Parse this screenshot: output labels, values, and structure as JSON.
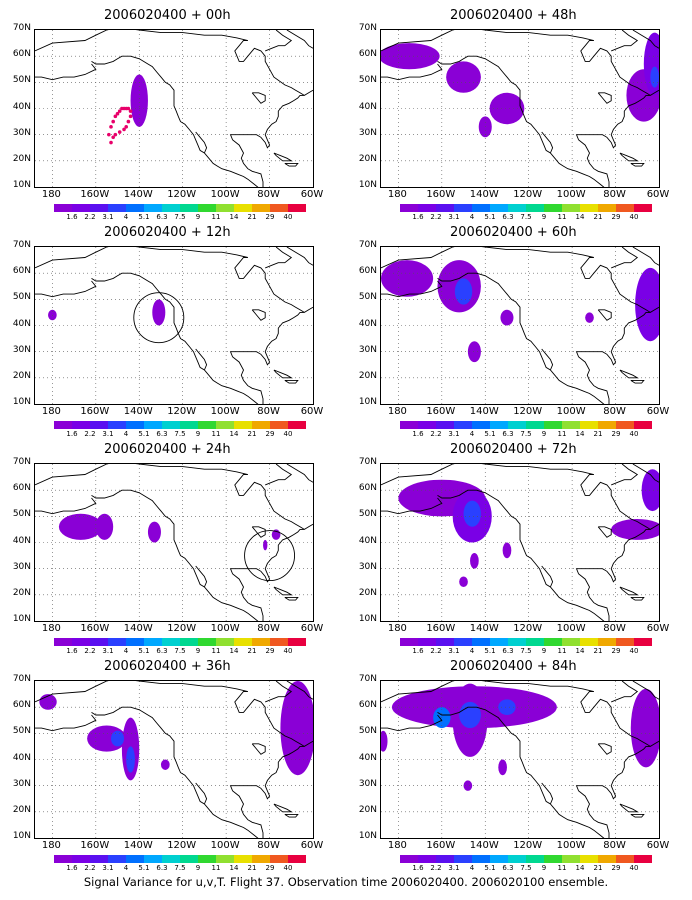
{
  "panels": [
    {
      "title": "2006020400 + 00h"
    },
    {
      "title": "2006020400 + 48h"
    },
    {
      "title": "2006020400 + 12h"
    },
    {
      "title": "2006020400 + 60h"
    },
    {
      "title": "2006020400 + 24h"
    },
    {
      "title": "2006020400 + 72h"
    },
    {
      "title": "2006020400 + 36h"
    },
    {
      "title": "2006020400 + 84h"
    }
  ],
  "y_labels": [
    "70N",
    "60N",
    "50N",
    "40N",
    "30N",
    "20N",
    "10N"
  ],
  "x_labels": [
    "180",
    "160W",
    "140W",
    "120W",
    "100W",
    "80W",
    "60W"
  ],
  "colorbar": {
    "labels": [
      "1.6",
      "2.2",
      "3.1",
      "4",
      "5.1",
      "6.3",
      "7.5",
      "9",
      "11",
      "14",
      "21",
      "29",
      "40"
    ],
    "colors": [
      "#8a00d6",
      "#7a00e6",
      "#5a10f0",
      "#2a40ff",
      "#0070ff",
      "#00a8ff",
      "#00d0d0",
      "#00d890",
      "#30d830",
      "#90e030",
      "#e8e000",
      "#f0a800",
      "#f05820",
      "#e80040"
    ]
  },
  "caption": "Signal Variance for u,v,T. Flight 37. Observation time 2006020400. 2006020100 ensemble."
}
